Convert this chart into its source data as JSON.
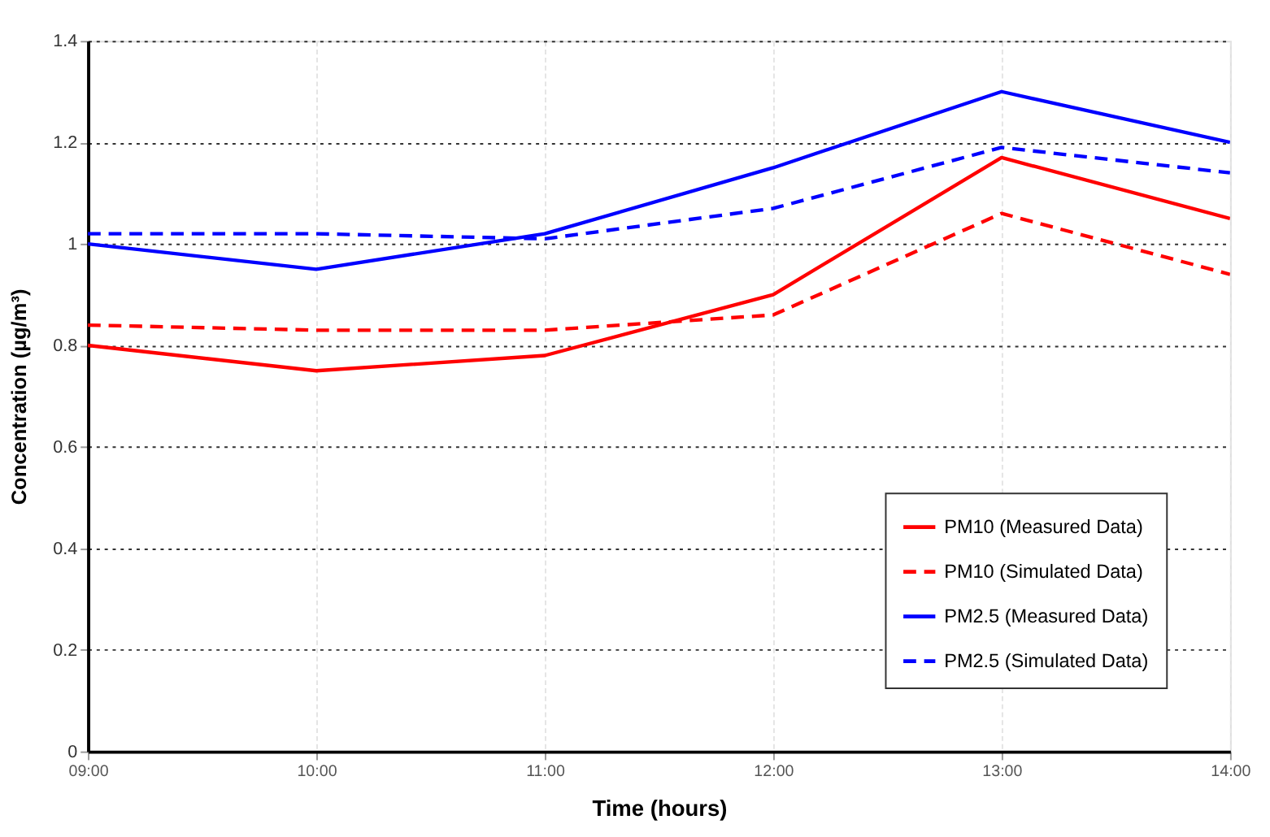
{
  "chart_data": {
    "type": "line",
    "xlabel": "Time (hours)",
    "ylabel": "Concentration (µg/m³)",
    "x": [
      9,
      10,
      11,
      12,
      13,
      14
    ],
    "xlim": [
      9,
      14
    ],
    "xticks": [
      {
        "value": 9,
        "label": "09:00"
      },
      {
        "value": 10,
        "label": "10:00"
      },
      {
        "value": 11,
        "label": "11:00"
      },
      {
        "value": 12,
        "label": "12:00"
      },
      {
        "value": 13,
        "label": "13:00"
      },
      {
        "value": 14,
        "label": "14:00"
      }
    ],
    "ylim": [
      0,
      1.4
    ],
    "yticks": [
      0,
      0.2,
      0.4,
      0.6,
      0.8,
      1,
      1.2,
      1.4
    ],
    "grid": true,
    "legend": "bottom right",
    "marker": "none",
    "series": [
      {
        "name": "PM10 (Measured Data)",
        "color": "#ff0000",
        "line_style": "solid",
        "values": [
          0.8,
          0.75,
          0.78,
          0.9,
          1.17,
          1.05
        ]
      },
      {
        "name": "PM10 (Simulated Data)",
        "color": "#ff0000",
        "line_style": "dashed",
        "values": [
          0.84,
          0.83,
          0.83,
          0.86,
          1.06,
          0.94
        ]
      },
      {
        "name": "PM2.5 (Measured Data)",
        "color": "#0000ff",
        "line_style": "solid",
        "values": [
          1.0,
          0.95,
          1.02,
          1.15,
          1.3,
          1.2
        ]
      },
      {
        "name": "PM2.5 (Simulated Data)",
        "color": "#0000ff",
        "line_style": "dashed",
        "values": [
          1.02,
          1.02,
          1.01,
          1.07,
          1.19,
          1.14
        ]
      }
    ]
  }
}
